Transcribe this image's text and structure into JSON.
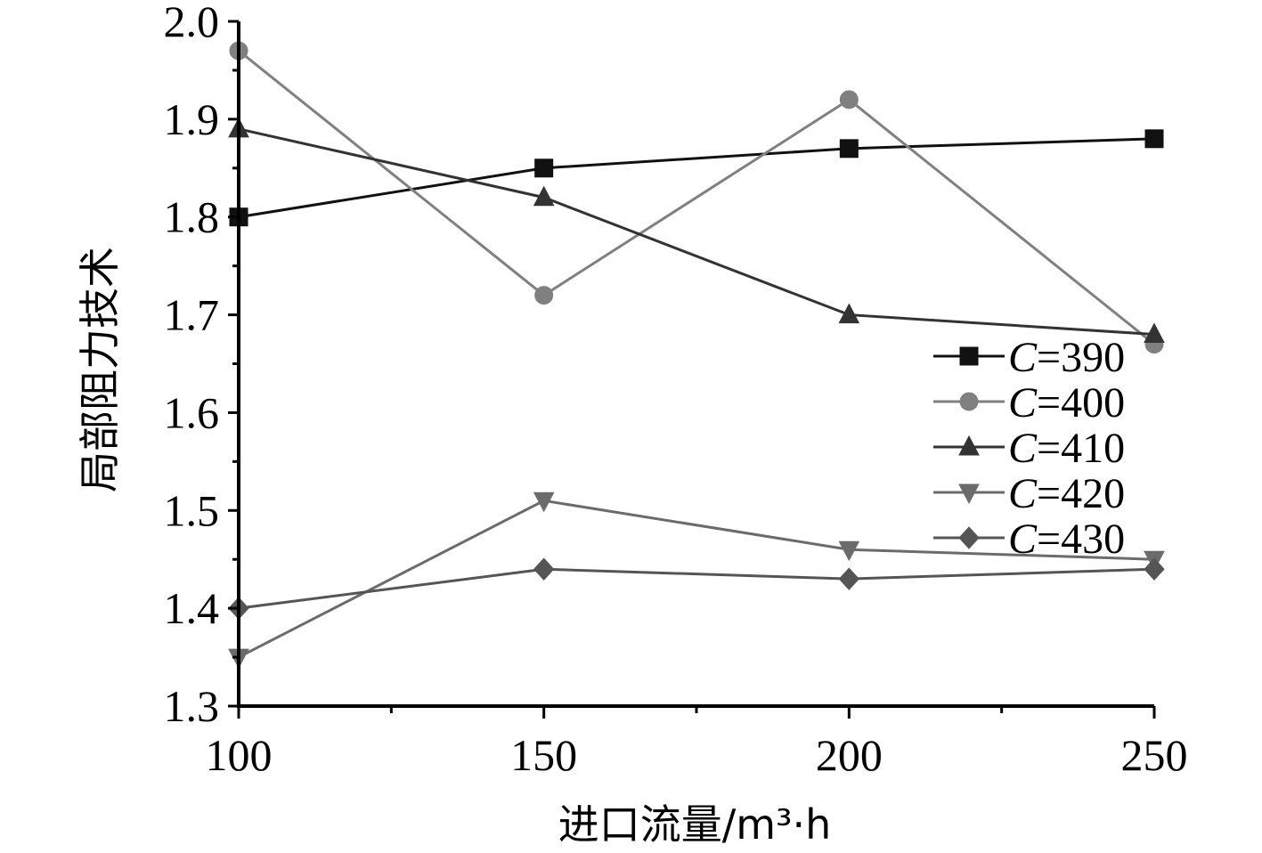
{
  "chart_data": {
    "type": "line",
    "xlabel": "进口流量/m³·h",
    "ylabel": "局部阻力技术",
    "x": [
      100,
      150,
      200,
      250
    ],
    "xlim": [
      100,
      250
    ],
    "ylim": [
      1.3,
      2.0
    ],
    "xticks": [
      "100",
      "150",
      "200",
      "250"
    ],
    "yticks": [
      "1.3",
      "1.4",
      "1.5",
      "1.6",
      "1.7",
      "1.8",
      "1.9",
      "2.0"
    ],
    "grid": false,
    "legend_position": "right",
    "series": [
      {
        "name": "C=390",
        "name_prefix": "C",
        "name_suffix": "=390",
        "values": [
          1.8,
          1.85,
          1.87,
          1.88
        ],
        "color": "#111111",
        "marker": "square"
      },
      {
        "name": "C=400",
        "name_prefix": "C",
        "name_suffix": "=400",
        "values": [
          1.97,
          1.72,
          1.92,
          1.67
        ],
        "color": "#808080",
        "marker": "circle"
      },
      {
        "name": "C=410",
        "name_prefix": "C",
        "name_suffix": "=410",
        "values": [
          1.89,
          1.82,
          1.7,
          1.68
        ],
        "color": "#333333",
        "marker": "triangle-up"
      },
      {
        "name": "C=420",
        "name_prefix": "C",
        "name_suffix": "=420",
        "values": [
          1.35,
          1.51,
          1.46,
          1.45
        ],
        "color": "#6b6b6b",
        "marker": "triangle-down"
      },
      {
        "name": "C=430",
        "name_prefix": "C",
        "name_suffix": "=430",
        "values": [
          1.4,
          1.44,
          1.43,
          1.44
        ],
        "color": "#555555",
        "marker": "diamond"
      }
    ]
  }
}
